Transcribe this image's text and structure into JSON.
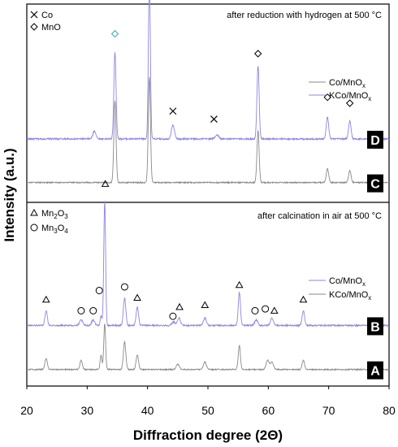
{
  "chart_data": {
    "type": "line",
    "xlabel": "Diffraction degree (2Θ)",
    "ylabel": "Intensity (a.u.)",
    "xlim": [
      20,
      80
    ],
    "x_ticks": [
      "20",
      "30",
      "40",
      "50",
      "60",
      "70",
      "80"
    ],
    "grid": false,
    "panels": [
      {
        "id": "top",
        "annotation": "after reduction with hydrogen at 500 °C",
        "phase_legend": [
          {
            "symbol": "cross",
            "label": "Co"
          },
          {
            "symbol": "diamond",
            "label": "MnO"
          }
        ],
        "line_legend": [
          {
            "label": "Co/MnO",
            "sub": "x",
            "color": "#8a8a8a"
          },
          {
            "label": "KCo/MnO",
            "sub": "x",
            "color": "#8c86e0"
          }
        ],
        "curve_labels": [
          "D",
          "C"
        ],
        "series": [
          {
            "label": "D",
            "color": "#8c86e0",
            "baseline": 0.32,
            "noise": 0.008,
            "peaks": [
              {
                "x": 31.2,
                "h": 0.04,
                "w": 0.25
              },
              {
                "x": 34.6,
                "h": 0.44,
                "w": 0.18
              },
              {
                "x": 40.3,
                "h": 0.82,
                "w": 0.16
              },
              {
                "x": 44.2,
                "h": 0.07,
                "w": 0.25
              },
              {
                "x": 51.5,
                "h": 0.02,
                "w": 0.3
              },
              {
                "x": 58.3,
                "h": 0.37,
                "w": 0.18
              },
              {
                "x": 69.8,
                "h": 0.11,
                "w": 0.2
              },
              {
                "x": 73.5,
                "h": 0.09,
                "w": 0.2
              }
            ]
          },
          {
            "label": "C",
            "color": "#8a8a8a",
            "baseline": 0.1,
            "noise": 0.006,
            "peaks": [
              {
                "x": 34.6,
                "h": 0.41,
                "w": 0.18
              },
              {
                "x": 40.3,
                "h": 0.53,
                "w": 0.18
              },
              {
                "x": 58.3,
                "h": 0.26,
                "w": 0.18
              },
              {
                "x": 69.8,
                "h": 0.07,
                "w": 0.2
              },
              {
                "x": 73.5,
                "h": 0.06,
                "w": 0.2
              }
            ]
          }
        ],
        "markers": [
          {
            "symbol": "diamond",
            "x": 34.6,
            "y": 0.85,
            "color": "#3aa6b0"
          },
          {
            "symbol": "diamond",
            "x": 40.3,
            "y": 1.2,
            "color": "#000000"
          },
          {
            "symbol": "cross",
            "x": 44.2,
            "y": 0.46,
            "color": "#000000"
          },
          {
            "symbol": "cross",
            "x": 51.0,
            "y": 0.42,
            "color": "#000000"
          },
          {
            "symbol": "diamond",
            "x": 58.3,
            "y": 0.75,
            "color": "#000000"
          },
          {
            "symbol": "diamond",
            "x": 69.8,
            "y": 0.53,
            "color": "#000000"
          },
          {
            "symbol": "diamond",
            "x": 73.5,
            "y": 0.5,
            "color": "#000000"
          }
        ]
      },
      {
        "id": "bottom",
        "annotation": "after calcination in air at 500 °C",
        "phase_legend": [
          {
            "symbol": "triangle",
            "label": "Mn",
            "sub1": "2",
            "mid": "O",
            "sub2": "3"
          },
          {
            "symbol": "circle",
            "label": "Mn",
            "sub1": "3",
            "mid": "O",
            "sub2": "4"
          }
        ],
        "line_legend": [
          {
            "label": "Co/MnO",
            "sub": "x",
            "color": "#8a8a8a"
          },
          {
            "label": "KCo/MnO",
            "sub": "x",
            "color": "#8c86e0"
          }
        ],
        "curve_labels": [
          "B",
          "A"
        ],
        "series": [
          {
            "label": "B",
            "color": "#8c86e0",
            "baseline": 0.33,
            "noise": 0.008,
            "peaks": [
              {
                "x": 23.2,
                "h": 0.08,
                "w": 0.2
              },
              {
                "x": 29.0,
                "h": 0.03,
                "w": 0.25
              },
              {
                "x": 31.0,
                "h": 0.03,
                "w": 0.25
              },
              {
                "x": 32.3,
                "h": 0.05,
                "w": 0.15
              },
              {
                "x": 32.9,
                "h": 0.68,
                "w": 0.15
              },
              {
                "x": 36.2,
                "h": 0.15,
                "w": 0.2
              },
              {
                "x": 38.3,
                "h": 0.1,
                "w": 0.2
              },
              {
                "x": 44.3,
                "h": 0.02,
                "w": 0.25
              },
              {
                "x": 45.2,
                "h": 0.04,
                "w": 0.25
              },
              {
                "x": 49.5,
                "h": 0.04,
                "w": 0.25
              },
              {
                "x": 55.2,
                "h": 0.18,
                "w": 0.18
              },
              {
                "x": 58.0,
                "h": 0.03,
                "w": 0.25
              },
              {
                "x": 60.6,
                "h": 0.04,
                "w": 0.25
              },
              {
                "x": 65.8,
                "h": 0.08,
                "w": 0.2
              }
            ]
          },
          {
            "label": "A",
            "color": "#8a8a8a",
            "baseline": 0.09,
            "noise": 0.006,
            "peaks": [
              {
                "x": 23.2,
                "h": 0.06,
                "w": 0.2
              },
              {
                "x": 29.0,
                "h": 0.05,
                "w": 0.2
              },
              {
                "x": 32.3,
                "h": 0.08,
                "w": 0.15
              },
              {
                "x": 32.9,
                "h": 0.25,
                "w": 0.15
              },
              {
                "x": 36.2,
                "h": 0.15,
                "w": 0.2
              },
              {
                "x": 38.3,
                "h": 0.08,
                "w": 0.2
              },
              {
                "x": 45.0,
                "h": 0.03,
                "w": 0.25
              },
              {
                "x": 49.5,
                "h": 0.04,
                "w": 0.25
              },
              {
                "x": 55.2,
                "h": 0.13,
                "w": 0.18
              },
              {
                "x": 59.9,
                "h": 0.05,
                "w": 0.25
              },
              {
                "x": 60.6,
                "h": 0.04,
                "w": 0.25
              },
              {
                "x": 65.8,
                "h": 0.05,
                "w": 0.2
              }
            ]
          }
        ],
        "markers": [
          {
            "symbol": "triangle",
            "x": 23.2,
            "y": 0.47
          },
          {
            "symbol": "circle",
            "x": 29.0,
            "y": 0.41
          },
          {
            "symbol": "circle",
            "x": 31.0,
            "y": 0.41
          },
          {
            "symbol": "circle",
            "x": 32.0,
            "y": 0.52
          },
          {
            "symbol": "triangle",
            "x": 33.0,
            "y": 1.1
          },
          {
            "symbol": "circle",
            "x": 36.2,
            "y": 0.54
          },
          {
            "symbol": "triangle",
            "x": 38.3,
            "y": 0.48
          },
          {
            "symbol": "circle",
            "x": 44.2,
            "y": 0.38
          },
          {
            "symbol": "triangle",
            "x": 45.3,
            "y": 0.43
          },
          {
            "symbol": "triangle",
            "x": 49.5,
            "y": 0.44
          },
          {
            "symbol": "triangle",
            "x": 55.2,
            "y": 0.55
          },
          {
            "symbol": "circle",
            "x": 57.8,
            "y": 0.41
          },
          {
            "symbol": "circle",
            "x": 59.5,
            "y": 0.42
          },
          {
            "symbol": "triangle",
            "x": 61.0,
            "y": 0.41
          },
          {
            "symbol": "triangle",
            "x": 65.8,
            "y": 0.47
          }
        ]
      }
    ]
  }
}
